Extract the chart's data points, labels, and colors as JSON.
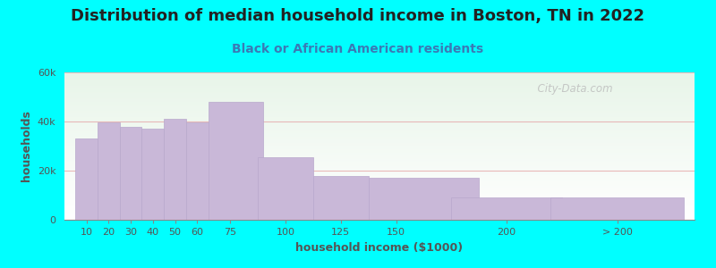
{
  "title": "Distribution of median household income in Boston, TN in 2022",
  "subtitle": "Black or African American residents",
  "xlabel": "household income ($1000)",
  "ylabel": "households",
  "background_color": "#00FFFF",
  "plot_bg_top": "#e8f5e9",
  "plot_bg_bottom": "#ffffff",
  "bar_color": "#c9b8d8",
  "bar_edge_color": "#b8a8cc",
  "title_color": "#222222",
  "subtitle_color": "#3a7ab5",
  "axis_color": "#555555",
  "grid_color": "#e8b8b8",
  "categories": [
    "10",
    "20",
    "30",
    "40",
    "50",
    "60",
    "75",
    "100",
    "125",
    "150",
    "200",
    "> 200"
  ],
  "values": [
    33000,
    39500,
    38000,
    37000,
    41000,
    39500,
    48000,
    25500,
    18000,
    17000,
    9000,
    9000
  ],
  "bar_lefts": [
    5,
    15,
    25,
    35,
    45,
    55,
    65,
    87.5,
    112.5,
    137.5,
    175,
    220
  ],
  "bar_widths": [
    10,
    10,
    10,
    10,
    10,
    15,
    25,
    25,
    25,
    50,
    50,
    60
  ],
  "x_tick_positions": [
    10,
    20,
    30,
    40,
    50,
    60,
    75,
    100,
    125,
    150,
    200,
    250
  ],
  "xlim": [
    0,
    285
  ],
  "ylim": [
    0,
    60000
  ],
  "ytick_labels": [
    "0",
    "20k",
    "40k",
    "60k"
  ],
  "ytick_values": [
    0,
    20000,
    40000,
    60000
  ],
  "title_fontsize": 13,
  "subtitle_fontsize": 10,
  "axis_label_fontsize": 9,
  "tick_fontsize": 8,
  "watermark": "  City-Data.com"
}
